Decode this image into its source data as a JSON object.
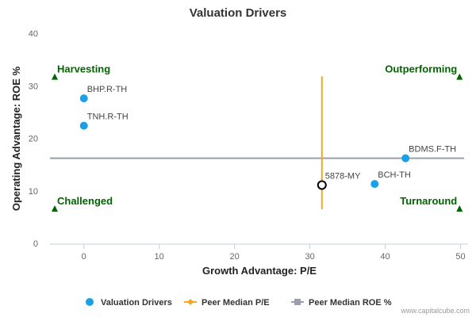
{
  "chart_data": {
    "type": "scatter",
    "title": "Valuation Drivers",
    "xlabel": "Growth Advantage: P/E",
    "ylabel": "Operating Advantage: ROE %",
    "xlim": [
      -4.5,
      51
    ],
    "ylim": [
      0,
      40
    ],
    "xticks": [
      0,
      10,
      20,
      30,
      40,
      50
    ],
    "yticks": [
      0,
      10,
      20,
      30,
      40
    ],
    "grid": false,
    "series": [
      {
        "name": "Valuation Drivers",
        "color": "#1aa0e8",
        "points": [
          {
            "label": "BHP.R-TH",
            "x": 0,
            "y": 27.6
          },
          {
            "label": "TNH.R-TH",
            "x": 0,
            "y": 22.4
          },
          {
            "label": "BDMS.F-TH",
            "x": 42.7,
            "y": 16.2
          },
          {
            "label": "BCH-TH",
            "x": 38.6,
            "y": 11.3
          }
        ]
      }
    ],
    "highlight_point": {
      "label": "5878-MY",
      "x": 31.6,
      "y": 11.1
    },
    "peer_median_pe": {
      "name": "Peer Median P/E",
      "x": 31.6,
      "y_range": [
        6.5,
        31.8
      ],
      "color": "#f5a623"
    },
    "peer_median_roe": {
      "name": "Peer Median ROE %",
      "y": 16.2,
      "color": "#9aa0aa"
    },
    "quadrants": [
      {
        "label": "Harvesting",
        "x": -4.5,
        "y": 31.6,
        "side": "left"
      },
      {
        "label": "Outperforming",
        "x": 50.5,
        "y": 31.6,
        "side": "right"
      },
      {
        "label": "Challenged",
        "x": -4.5,
        "y": 6.5,
        "side": "left"
      },
      {
        "label": "Turnaround",
        "x": 50.5,
        "y": 6.5,
        "side": "right"
      }
    ],
    "quadrant_color": "#006400",
    "legend": {
      "placement": "bottom",
      "items": [
        {
          "label": "Valuation Drivers",
          "marker": "circle",
          "color": "#1aa0e8"
        },
        {
          "label": "Peer Median P/E",
          "marker": "line-diamond",
          "color": "#f5a623"
        },
        {
          "label": "Peer Median ROE %",
          "marker": "line-square",
          "color": "#9aa0aa"
        }
      ]
    },
    "credit": "www.capitalcube.com"
  }
}
